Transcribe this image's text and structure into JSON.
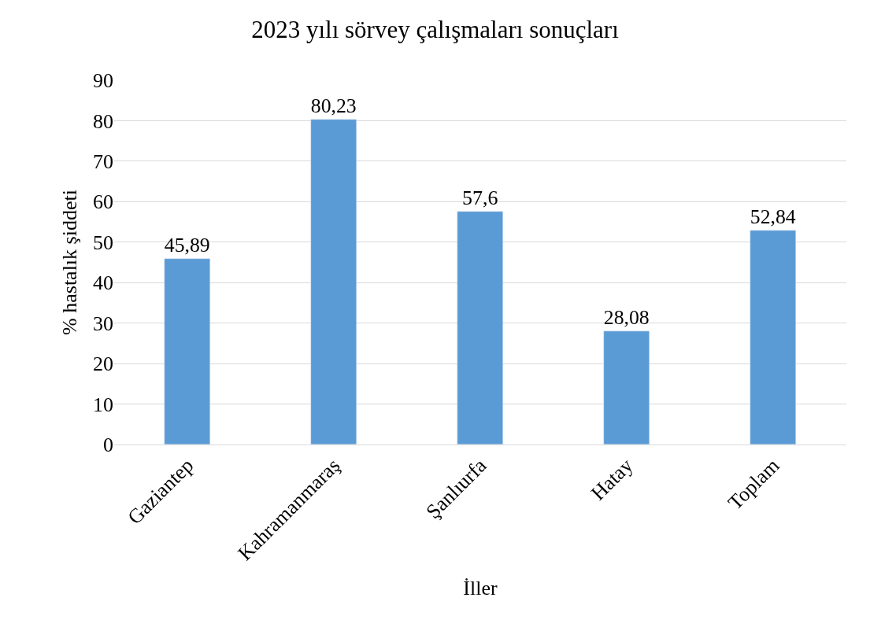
{
  "chart_data": {
    "type": "bar",
    "title": "2023 yılı sörvey çalışmaları sonuçları",
    "xlabel": "İller",
    "ylabel": "% hastalık şiddeti",
    "categories": [
      "Gaziantep",
      "Kahramanmaraş",
      "Şanlıurfa",
      "Hatay",
      "Toplam"
    ],
    "values": [
      45.89,
      80.23,
      57.6,
      28.08,
      52.84
    ],
    "value_labels": [
      "45,89",
      "80,23",
      "57,6",
      "28,08",
      "52,84"
    ],
    "color": "#5b9bd5",
    "ylim": [
      0,
      90
    ],
    "yticks": [
      0,
      10,
      20,
      30,
      40,
      50,
      60,
      70,
      80,
      90
    ],
    "grid": "y"
  }
}
